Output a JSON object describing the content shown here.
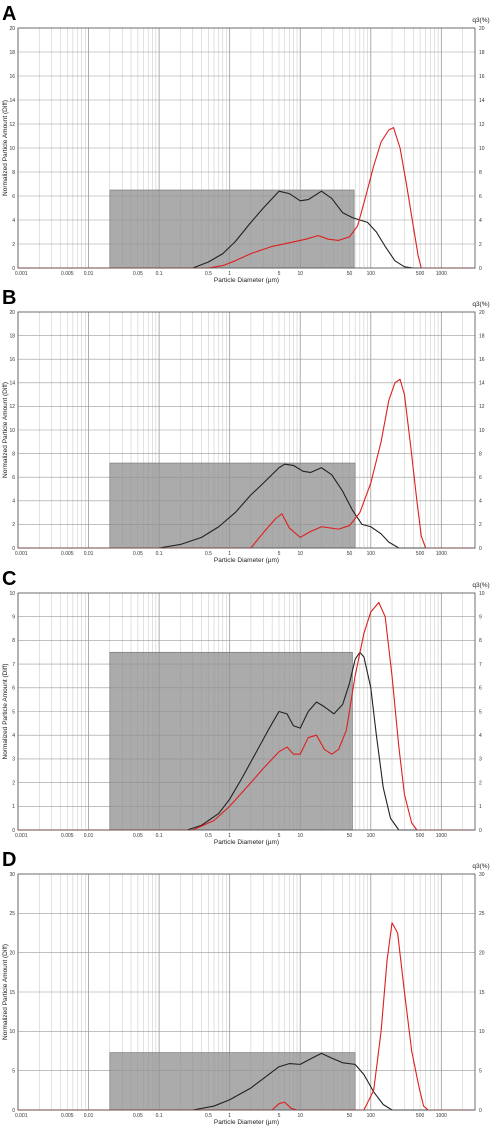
{
  "chart_data": [
    {
      "panel_label": "A",
      "type": "line",
      "xscale": "log",
      "xlim": [
        0.001,
        3000
      ],
      "ylim": [
        0,
        20
      ],
      "yticks": [
        0,
        2,
        4,
        6,
        8,
        10,
        12,
        14,
        16,
        18,
        20
      ],
      "right_yticks": [
        0,
        2,
        4,
        6,
        8,
        10,
        12,
        14,
        16,
        18,
        20
      ],
      "xticks": [
        "0.001",
        "0.005",
        "0.01",
        "0.05",
        "0.1",
        "0.5",
        "1",
        "5",
        "10",
        "50",
        "100",
        "500",
        "1000"
      ],
      "xlabel": "Particle Diameter (µm)",
      "ylabel": "Normalized Particle Amount (Diff)",
      "right_label": "q3(%)",
      "box": {
        "x0": 0.02,
        "x1": 58,
        "height": 6.5
      },
      "series": [
        {
          "color": "#222222",
          "points": [
            [
              0.3,
              0
            ],
            [
              0.5,
              0.5
            ],
            [
              0.8,
              1.2
            ],
            [
              1.2,
              2.2
            ],
            [
              2,
              3.8
            ],
            [
              3,
              5.0
            ],
            [
              5,
              6.4
            ],
            [
              7,
              6.2
            ],
            [
              10,
              5.6
            ],
            [
              13,
              5.7
            ],
            [
              20,
              6.4
            ],
            [
              28,
              5.8
            ],
            [
              40,
              4.6
            ],
            [
              55,
              4.2
            ],
            [
              70,
              4.0
            ],
            [
              90,
              3.8
            ],
            [
              120,
              3.0
            ],
            [
              160,
              1.8
            ],
            [
              220,
              0.6
            ],
            [
              300,
              0.1
            ],
            [
              400,
              0
            ],
            [
              3000,
              0
            ]
          ]
        },
        {
          "color": "#dd1f1f",
          "points": [
            [
              0.001,
              0
            ],
            [
              0.5,
              0
            ],
            [
              0.8,
              0.2
            ],
            [
              1.2,
              0.6
            ],
            [
              2,
              1.2
            ],
            [
              4,
              1.8
            ],
            [
              7,
              2.1
            ],
            [
              12,
              2.4
            ],
            [
              18,
              2.7
            ],
            [
              25,
              2.4
            ],
            [
              35,
              2.3
            ],
            [
              50,
              2.6
            ],
            [
              65,
              3.5
            ],
            [
              85,
              6.0
            ],
            [
              110,
              8.5
            ],
            [
              140,
              10.5
            ],
            [
              180,
              11.5
            ],
            [
              210,
              11.7
            ],
            [
              260,
              10.0
            ],
            [
              320,
              7.0
            ],
            [
              400,
              3.5
            ],
            [
              470,
              1.0
            ],
            [
              520,
              0
            ],
            [
              3000,
              0
            ]
          ]
        }
      ]
    },
    {
      "panel_label": "B",
      "type": "line",
      "xscale": "log",
      "xlim": [
        0.001,
        3000
      ],
      "ylim": [
        0,
        20
      ],
      "yticks": [
        0,
        2,
        4,
        6,
        8,
        10,
        12,
        14,
        16,
        18,
        20
      ],
      "right_yticks": [
        0,
        2,
        4,
        6,
        8,
        10,
        12,
        14,
        16,
        18,
        20
      ],
      "xticks": [
        "0.001",
        "0.005",
        "0.01",
        "0.05",
        "0.1",
        "0.5",
        "1",
        "5",
        "10",
        "50",
        "100",
        "500",
        "1000"
      ],
      "xlabel": "Particle Diameter (µm)",
      "ylabel": "Normalized Particle Amount (Diff)",
      "right_label": "q3(%)",
      "box": {
        "x0": 0.02,
        "x1": 60,
        "height": 7.2
      },
      "series": [
        {
          "color": "#222222",
          "points": [
            [
              0.1,
              0
            ],
            [
              0.2,
              0.3
            ],
            [
              0.4,
              0.9
            ],
            [
              0.7,
              1.8
            ],
            [
              1.2,
              3.0
            ],
            [
              2,
              4.5
            ],
            [
              3,
              5.5
            ],
            [
              5,
              6.8
            ],
            [
              6,
              7.1
            ],
            [
              8,
              7.0
            ],
            [
              11,
              6.5
            ],
            [
              14,
              6.4
            ],
            [
              20,
              6.8
            ],
            [
              28,
              6.2
            ],
            [
              40,
              4.8
            ],
            [
              55,
              3.2
            ],
            [
              75,
              2.0
            ],
            [
              100,
              1.8
            ],
            [
              140,
              1.2
            ],
            [
              180,
              0.5
            ],
            [
              250,
              0
            ],
            [
              3000,
              0
            ]
          ]
        },
        {
          "color": "#dd1f1f",
          "points": [
            [
              0.001,
              0
            ],
            [
              2,
              0
            ],
            [
              3,
              1.3
            ],
            [
              4.5,
              2.5
            ],
            [
              5.5,
              2.9
            ],
            [
              7,
              1.7
            ],
            [
              10,
              0.9
            ],
            [
              14,
              1.4
            ],
            [
              20,
              1.8
            ],
            [
              35,
              1.6
            ],
            [
              50,
              1.9
            ],
            [
              70,
              3.0
            ],
            [
              100,
              5.5
            ],
            [
              140,
              9.0
            ],
            [
              180,
              12.5
            ],
            [
              220,
              14.0
            ],
            [
              260,
              14.3
            ],
            [
              300,
              13.0
            ],
            [
              370,
              8.5
            ],
            [
              450,
              4.0
            ],
            [
              520,
              1.0
            ],
            [
              600,
              0
            ],
            [
              3000,
              0
            ]
          ]
        }
      ]
    },
    {
      "panel_label": "C",
      "type": "line",
      "xscale": "log",
      "xlim": [
        0.001,
        3000
      ],
      "ylim": [
        0,
        10
      ],
      "yticks": [
        0,
        1,
        2,
        3,
        4,
        5,
        6,
        7,
        8,
        9,
        10
      ],
      "right_yticks": [
        0,
        1,
        2,
        3,
        4,
        5,
        6,
        7,
        8,
        9,
        10
      ],
      "xticks": [
        "0.001",
        "0.005",
        "0.01",
        "0.05",
        "0.1",
        "0.5",
        "1",
        "5",
        "10",
        "50",
        "100",
        "500",
        "1000"
      ],
      "xlabel": "Particle Diameter (µm)",
      "ylabel": "Normalized Particle Amount (Diff)",
      "right_label": "q3(%)",
      "box": {
        "x0": 0.02,
        "x1": 55,
        "height": 7.5
      },
      "series": [
        {
          "color": "#222222",
          "points": [
            [
              0.25,
              0
            ],
            [
              0.4,
              0.2
            ],
            [
              0.7,
              0.7
            ],
            [
              1,
              1.3
            ],
            [
              1.5,
              2.2
            ],
            [
              2.5,
              3.4
            ],
            [
              3.5,
              4.2
            ],
            [
              5,
              5.0
            ],
            [
              6.5,
              4.9
            ],
            [
              8,
              4.4
            ],
            [
              10,
              4.3
            ],
            [
              13,
              5.0
            ],
            [
              17,
              5.4
            ],
            [
              22,
              5.2
            ],
            [
              30,
              4.9
            ],
            [
              40,
              5.3
            ],
            [
              50,
              6.2
            ],
            [
              60,
              7.2
            ],
            [
              70,
              7.5
            ],
            [
              80,
              7.3
            ],
            [
              100,
              6.0
            ],
            [
              120,
              4.0
            ],
            [
              150,
              1.8
            ],
            [
              190,
              0.5
            ],
            [
              250,
              0
            ],
            [
              3000,
              0
            ]
          ]
        },
        {
          "color": "#dd1f1f",
          "points": [
            [
              0.001,
              0
            ],
            [
              0.3,
              0
            ],
            [
              0.6,
              0.4
            ],
            [
              1,
              1.0
            ],
            [
              2,
              2.0
            ],
            [
              3,
              2.6
            ],
            [
              5,
              3.3
            ],
            [
              6.5,
              3.5
            ],
            [
              8,
              3.2
            ],
            [
              10,
              3.2
            ],
            [
              13,
              3.9
            ],
            [
              17,
              4.0
            ],
            [
              22,
              3.4
            ],
            [
              28,
              3.2
            ],
            [
              35,
              3.4
            ],
            [
              45,
              4.2
            ],
            [
              60,
              6.5
            ],
            [
              80,
              8.3
            ],
            [
              100,
              9.2
            ],
            [
              130,
              9.6
            ],
            [
              160,
              9.0
            ],
            [
              200,
              6.5
            ],
            [
              250,
              3.5
            ],
            [
              300,
              1.5
            ],
            [
              380,
              0.3
            ],
            [
              450,
              0
            ],
            [
              3000,
              0
            ]
          ]
        }
      ]
    },
    {
      "panel_label": "D",
      "type": "line",
      "xscale": "log",
      "xlim": [
        0.001,
        3000
      ],
      "ylim": [
        0,
        30
      ],
      "yticks": [
        0,
        5,
        10,
        15,
        20,
        25,
        30
      ],
      "right_yticks": [
        0,
        5,
        10,
        15,
        20,
        25,
        30
      ],
      "xticks": [
        "0.001",
        "0.005",
        "0.01",
        "0.05",
        "0.1",
        "0.5",
        "1",
        "5",
        "10",
        "50",
        "100",
        "500",
        "1000"
      ],
      "xlabel": "Particle Diameter (µm)",
      "ylabel": "Normalized Particle Amount (Diff)",
      "right_label": "q3(%)",
      "box": {
        "x0": 0.02,
        "x1": 60,
        "height": 7.3
      },
      "series": [
        {
          "color": "#222222",
          "points": [
            [
              0.3,
              0
            ],
            [
              0.6,
              0.5
            ],
            [
              1,
              1.3
            ],
            [
              2,
              2.8
            ],
            [
              3,
              4.0
            ],
            [
              5,
              5.5
            ],
            [
              7,
              5.9
            ],
            [
              10,
              5.8
            ],
            [
              14,
              6.5
            ],
            [
              20,
              7.2
            ],
            [
              28,
              6.6
            ],
            [
              40,
              6.0
            ],
            [
              60,
              5.8
            ],
            [
              80,
              4.5
            ],
            [
              110,
              2.3
            ],
            [
              150,
              0.7
            ],
            [
              200,
              0
            ],
            [
              3000,
              0
            ]
          ]
        },
        {
          "color": "#dd1f1f",
          "points": [
            [
              0.001,
              0
            ],
            [
              4,
              0
            ],
            [
              5,
              0.8
            ],
            [
              6,
              1.0
            ],
            [
              7.5,
              0.2
            ],
            [
              9,
              0
            ],
            [
              80,
              0
            ],
            [
              110,
              2.5
            ],
            [
              140,
              10.0
            ],
            [
              170,
              19.0
            ],
            [
              200,
              23.8
            ],
            [
              240,
              22.5
            ],
            [
              300,
              15.0
            ],
            [
              380,
              7.5
            ],
            [
              480,
              3.0
            ],
            [
              560,
              0.5
            ],
            [
              650,
              0
            ],
            [
              3000,
              0
            ]
          ]
        }
      ]
    }
  ]
}
